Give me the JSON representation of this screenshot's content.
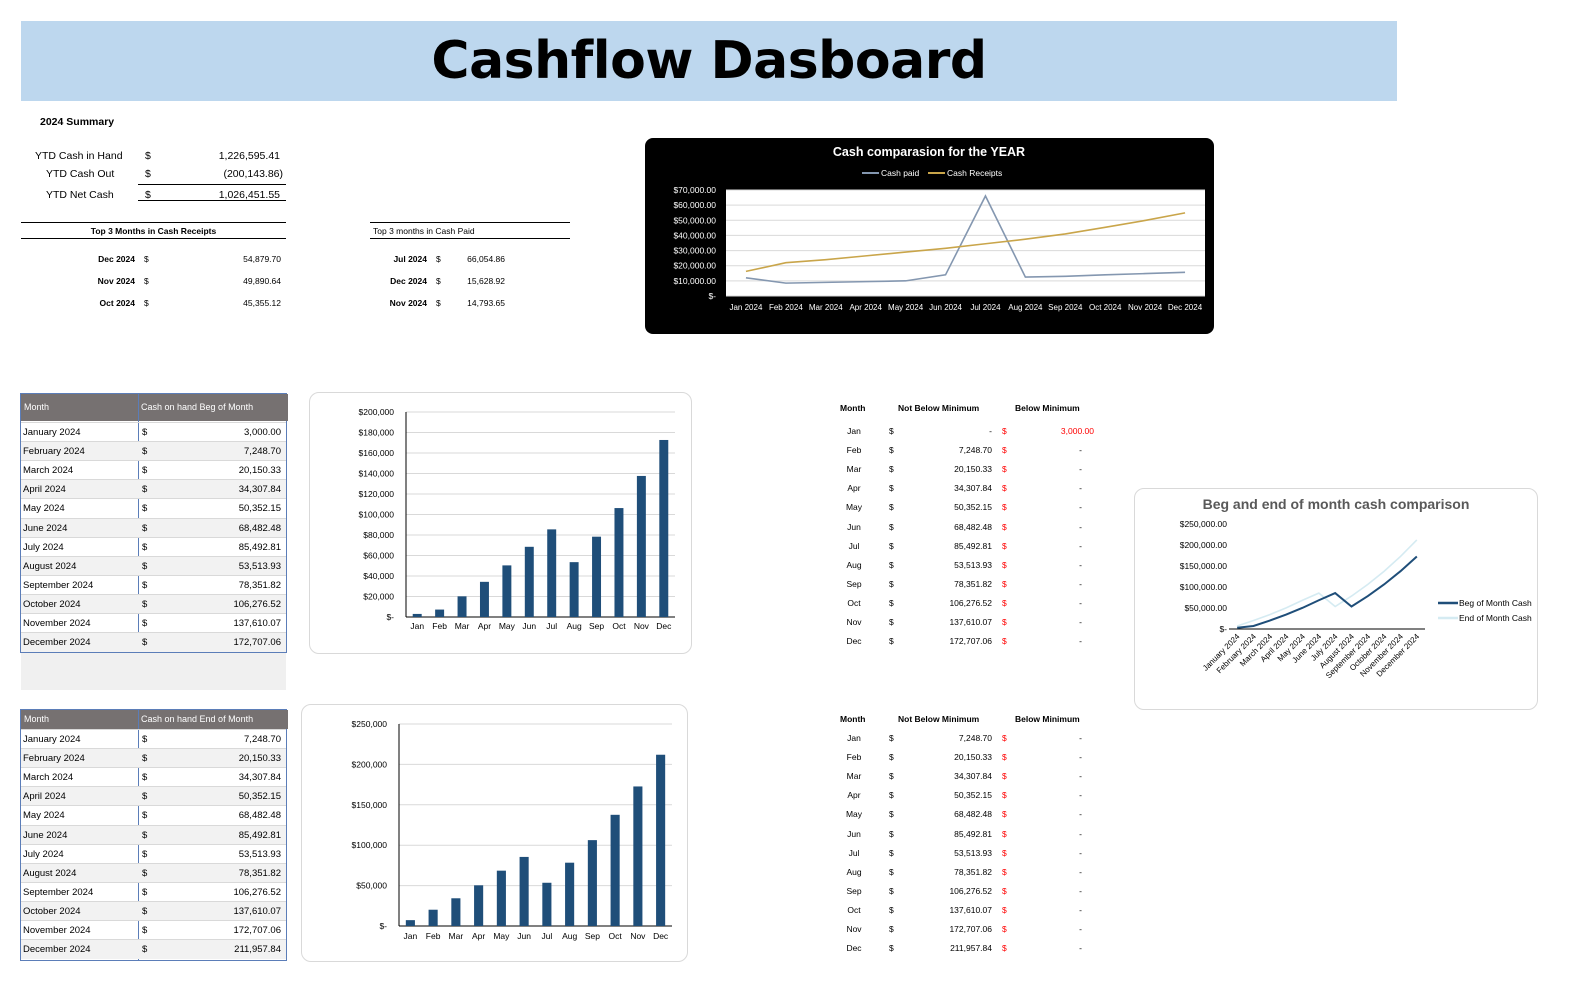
{
  "title": "Cashflow Dasboard",
  "summary": {
    "heading": "2024 Summary",
    "rows": [
      {
        "label": "YTD Cash in Hand",
        "cur": "$",
        "value": "1,226,595.41"
      },
      {
        "label": "YTD Cash Out",
        "cur": "$",
        "value": "(200,143.86)"
      },
      {
        "label": "YTD Net Cash",
        "cur": "$",
        "value": "1,026,451.55"
      }
    ]
  },
  "top_receipts": {
    "heading": "Top 3 Months in Cash Receipts",
    "rows": [
      {
        "month": "Dec 2024",
        "cur": "$",
        "value": "54,879.70"
      },
      {
        "month": "Nov 2024",
        "cur": "$",
        "value": "49,890.64"
      },
      {
        "month": "Oct 2024",
        "cur": "$",
        "value": "45,355.12"
      }
    ]
  },
  "top_paid": {
    "heading": "Top 3 months in Cash Paid",
    "rows": [
      {
        "month": "Jul 2024",
        "cur": "$",
        "value": "66,054.86"
      },
      {
        "month": "Dec 2024",
        "cur": "$",
        "value": "15,628.92"
      },
      {
        "month": "Nov 2024",
        "cur": "$",
        "value": "14,793.65"
      }
    ]
  },
  "beg_table": {
    "col1": "Month",
    "col2": "Cash on hand Beg of Month",
    "rows": [
      {
        "month": "January 2024",
        "cur": "$",
        "value": "3,000.00"
      },
      {
        "month": "February 2024",
        "cur": "$",
        "value": "7,248.70"
      },
      {
        "month": "March 2024",
        "cur": "$",
        "value": "20,150.33"
      },
      {
        "month": "April 2024",
        "cur": "$",
        "value": "34,307.84"
      },
      {
        "month": "May 2024",
        "cur": "$",
        "value": "50,352.15"
      },
      {
        "month": "June 2024",
        "cur": "$",
        "value": "68,482.48"
      },
      {
        "month": "July 2024",
        "cur": "$",
        "value": "85,492.81"
      },
      {
        "month": "August 2024",
        "cur": "$",
        "value": "53,513.93"
      },
      {
        "month": "September 2024",
        "cur": "$",
        "value": "78,351.82"
      },
      {
        "month": "October 2024",
        "cur": "$",
        "value": "106,276.52"
      },
      {
        "month": "November 2024",
        "cur": "$",
        "value": "137,610.07"
      },
      {
        "month": "December 2024",
        "cur": "$",
        "value": "172,707.06"
      }
    ]
  },
  "end_table": {
    "col1": "Month",
    "col2": "Cash on hand End of Month",
    "rows": [
      {
        "month": "January 2024",
        "cur": "$",
        "value": "7,248.70"
      },
      {
        "month": "February 2024",
        "cur": "$",
        "value": "20,150.33"
      },
      {
        "month": "March 2024",
        "cur": "$",
        "value": "34,307.84"
      },
      {
        "month": "April 2024",
        "cur": "$",
        "value": "50,352.15"
      },
      {
        "month": "May 2024",
        "cur": "$",
        "value": "68,482.48"
      },
      {
        "month": "June 2024",
        "cur": "$",
        "value": "85,492.81"
      },
      {
        "month": "July 2024",
        "cur": "$",
        "value": "53,513.93"
      },
      {
        "month": "August 2024",
        "cur": "$",
        "value": "78,351.82"
      },
      {
        "month": "September 2024",
        "cur": "$",
        "value": "106,276.52"
      },
      {
        "month": "October 2024",
        "cur": "$",
        "value": "137,610.07"
      },
      {
        "month": "November 2024",
        "cur": "$",
        "value": "172,707.06"
      },
      {
        "month": "December 2024",
        "cur": "$",
        "value": "211,957.84"
      }
    ]
  },
  "min_beg": {
    "col_month": "Month",
    "col_not_below": "Not Below Minimum",
    "col_below": "Below Minimum",
    "rows": [
      {
        "month": "Jan",
        "cur": "$",
        "not_below": "-",
        "cur2": "$",
        "below": "3,000.00"
      },
      {
        "month": "Feb",
        "cur": "$",
        "not_below": "7,248.70",
        "cur2": "$",
        "below": "-"
      },
      {
        "month": "Mar",
        "cur": "$",
        "not_below": "20,150.33",
        "cur2": "$",
        "below": "-"
      },
      {
        "month": "Apr",
        "cur": "$",
        "not_below": "34,307.84",
        "cur2": "$",
        "below": "-"
      },
      {
        "month": "May",
        "cur": "$",
        "not_below": "50,352.15",
        "cur2": "$",
        "below": "-"
      },
      {
        "month": "Jun",
        "cur": "$",
        "not_below": "68,482.48",
        "cur2": "$",
        "below": "-"
      },
      {
        "month": "Jul",
        "cur": "$",
        "not_below": "85,492.81",
        "cur2": "$",
        "below": "-"
      },
      {
        "month": "Aug",
        "cur": "$",
        "not_below": "53,513.93",
        "cur2": "$",
        "below": "-"
      },
      {
        "month": "Sep",
        "cur": "$",
        "not_below": "78,351.82",
        "cur2": "$",
        "below": "-"
      },
      {
        "month": "Oct",
        "cur": "$",
        "not_below": "106,276.52",
        "cur2": "$",
        "below": "-"
      },
      {
        "month": "Nov",
        "cur": "$",
        "not_below": "137,610.07",
        "cur2": "$",
        "below": "-"
      },
      {
        "month": "Dec",
        "cur": "$",
        "not_below": "172,707.06",
        "cur2": "$",
        "below": "-"
      }
    ]
  },
  "min_end": {
    "col_month": "Month",
    "col_not_below": "Not Below Minimum",
    "col_below": "Below Minimum",
    "rows": [
      {
        "month": "Jan",
        "cur": "$",
        "not_below": "7,248.70",
        "cur2": "$",
        "below": "-"
      },
      {
        "month": "Feb",
        "cur": "$",
        "not_below": "20,150.33",
        "cur2": "$",
        "below": "-"
      },
      {
        "month": "Mar",
        "cur": "$",
        "not_below": "34,307.84",
        "cur2": "$",
        "below": "-"
      },
      {
        "month": "Apr",
        "cur": "$",
        "not_below": "50,352.15",
        "cur2": "$",
        "below": "-"
      },
      {
        "month": "May",
        "cur": "$",
        "not_below": "68,482.48",
        "cur2": "$",
        "below": "-"
      },
      {
        "month": "Jun",
        "cur": "$",
        "not_below": "85,492.81",
        "cur2": "$",
        "below": "-"
      },
      {
        "month": "Jul",
        "cur": "$",
        "not_below": "53,513.93",
        "cur2": "$",
        "below": "-"
      },
      {
        "month": "Aug",
        "cur": "$",
        "not_below": "78,351.82",
        "cur2": "$",
        "below": "-"
      },
      {
        "month": "Sep",
        "cur": "$",
        "not_below": "106,276.52",
        "cur2": "$",
        "below": "-"
      },
      {
        "month": "Oct",
        "cur": "$",
        "not_below": "137,610.07",
        "cur2": "$",
        "below": "-"
      },
      {
        "month": "Nov",
        "cur": "$",
        "not_below": "172,707.06",
        "cur2": "$",
        "below": "-"
      },
      {
        "month": "Dec",
        "cur": "$",
        "not_below": "211,957.84",
        "cur2": "$",
        "below": "-"
      }
    ]
  },
  "colors": {
    "banner": "#bdd7ee",
    "bar": "#1f4e79",
    "cash_paid": "#8497b0",
    "cash_receipts": "#c9a54a",
    "beg_line": "#1f4e79",
    "end_line": "#d5ebf2",
    "negative": "#ff0000"
  },
  "chart_data": [
    {
      "type": "line",
      "title": "Cash comparasion for the YEAR",
      "categories": [
        "Jan 2024",
        "Feb 2024",
        "Mar 2024",
        "Apr 2024",
        "May 2024",
        "Jun 2024",
        "Jul 2024",
        "Aug 2024",
        "Sep 2024",
        "Oct 2024",
        "Nov 2024",
        "Dec 2024"
      ],
      "series": [
        {
          "name": "Cash paid",
          "values": [
            12000,
            8500,
            9000,
            9500,
            10000,
            14000,
            66054.86,
            12500,
            13000,
            14000,
            14793.65,
            15628.92
          ]
        },
        {
          "name": "Cash Receipts",
          "values": [
            16250,
            22000,
            24000,
            26500,
            29000,
            31500,
            34500,
            37500,
            41000,
            45355.12,
            49890.64,
            54879.7
          ]
        }
      ],
      "ytick_labels": [
        "$-",
        "$10,000.00",
        "$20,000.00",
        "$30,000.00",
        "$40,000.00",
        "$50,000.00",
        "$60,000.00",
        "$70,000.00"
      ],
      "ylim": [
        0,
        70000
      ],
      "legend": "top",
      "grid": true
    },
    {
      "type": "bar",
      "categories": [
        "Jan",
        "Feb",
        "Mar",
        "Apr",
        "May",
        "Jun",
        "Jul",
        "Aug",
        "Sep",
        "Oct",
        "Nov",
        "Dec"
      ],
      "values": [
        3000.0,
        7248.7,
        20150.33,
        34307.84,
        50352.15,
        68482.48,
        85492.81,
        53513.93,
        78351.82,
        106276.52,
        137610.07,
        172707.06
      ],
      "ytick_labels": [
        "$-",
        "$20,000",
        "$40,000",
        "$60,000",
        "$80,000",
        "$100,000",
        "$120,000",
        "$140,000",
        "$160,000",
        "$180,000",
        "$200,000"
      ],
      "ylim": [
        0,
        200000
      ],
      "grid": true
    },
    {
      "type": "bar",
      "categories": [
        "Jan",
        "Feb",
        "Mar",
        "Apr",
        "May",
        "Jun",
        "Jul",
        "Aug",
        "Sep",
        "Oct",
        "Nov",
        "Dec"
      ],
      "values": [
        7248.7,
        20150.33,
        34307.84,
        50352.15,
        68482.48,
        85492.81,
        53513.93,
        78351.82,
        106276.52,
        137610.07,
        172707.06,
        211957.84
      ],
      "ytick_labels": [
        "$-",
        "$50,000",
        "$100,000",
        "$150,000",
        "$200,000",
        "$250,000"
      ],
      "ylim": [
        0,
        250000
      ],
      "grid": true
    },
    {
      "type": "line",
      "title": "Beg and end of month cash comparison",
      "categories": [
        "January 2024",
        "February 2024",
        "March 2024",
        "April 2024",
        "May 2024",
        "June 2024",
        "July 2024",
        "August 2024",
        "September 2024",
        "October 2024",
        "November 2024",
        "December 2024"
      ],
      "series": [
        {
          "name": "Beg of Month Cash",
          "values": [
            3000.0,
            7248.7,
            20150.33,
            34307.84,
            50352.15,
            68482.48,
            85492.81,
            53513.93,
            78351.82,
            106276.52,
            137610.07,
            172707.06
          ]
        },
        {
          "name": "End of Month Cash",
          "values": [
            7248.7,
            20150.33,
            34307.84,
            50352.15,
            68482.48,
            85492.81,
            53513.93,
            78351.82,
            106276.52,
            137610.07,
            172707.06,
            211957.84
          ]
        }
      ],
      "ytick_labels": [
        "$-",
        "$50,000.00",
        "$100,000.00",
        "$150,000.00",
        "$200,000.00",
        "$250,000.00"
      ],
      "ylim": [
        0,
        250000
      ],
      "legend": "right",
      "grid": false
    }
  ]
}
